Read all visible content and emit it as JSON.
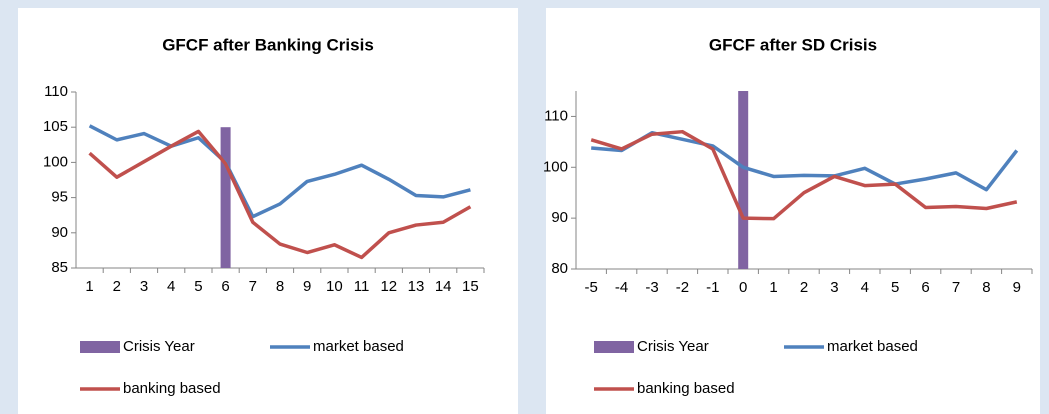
{
  "chart_data": [
    {
      "type": "line",
      "title": "GFCF after Banking Crisis",
      "categories": [
        "1",
        "2",
        "3",
        "4",
        "5",
        "6",
        "7",
        "8",
        "9",
        "10",
        "11",
        "12",
        "13",
        "14",
        "15"
      ],
      "ylim": [
        85,
        110
      ],
      "yticks": [
        85,
        90,
        95,
        100,
        105,
        110
      ],
      "series": [
        {
          "name": "Crisis Year",
          "type": "bar",
          "color": "#8064a2",
          "values": [
            null,
            null,
            null,
            null,
            null,
            105,
            null,
            null,
            null,
            null,
            null,
            null,
            null,
            null,
            null
          ]
        },
        {
          "name": "market based",
          "color": "#4f81bd",
          "values": [
            105.2,
            103.2,
            104.1,
            102.3,
            103.5,
            100,
            92.3,
            94.1,
            97.3,
            98.3,
            99.6,
            97.6,
            95.3,
            95.1,
            96.1
          ]
        },
        {
          "name": "banking based",
          "color": "#c0504d",
          "values": [
            101.3,
            97.9,
            100.1,
            102.3,
            104.4,
            99.8,
            91.5,
            88.4,
            87.2,
            88.3,
            86.5,
            90.0,
            91.1,
            91.5,
            93.7
          ]
        }
      ]
    },
    {
      "type": "line",
      "title": "GFCF after SD Crisis",
      "categories": [
        "-5",
        "-4",
        "-3",
        "-2",
        "-1",
        "0",
        "1",
        "2",
        "3",
        "4",
        "5",
        "6",
        "7",
        "8",
        "9"
      ],
      "ylim": [
        80,
        115
      ],
      "yticks": [
        80,
        90,
        100,
        110
      ],
      "series": [
        {
          "name": "Crisis Year",
          "type": "bar",
          "color": "#8064a2",
          "values": [
            null,
            null,
            null,
            null,
            null,
            115,
            null,
            null,
            null,
            null,
            null,
            null,
            null,
            null,
            null
          ]
        },
        {
          "name": "market based",
          "color": "#4f81bd",
          "values": [
            103.8,
            103.3,
            106.8,
            105.5,
            104.2,
            100,
            98.2,
            98.4,
            98.3,
            99.8,
            96.7,
            97.7,
            98.9,
            95.6,
            103.3
          ]
        },
        {
          "name": "banking based",
          "color": "#c0504d",
          "values": [
            105.4,
            103.6,
            106.5,
            107,
            103.6,
            90,
            89.9,
            95,
            98.2,
            96.4,
            96.7,
            92.1,
            92.3,
            91.9,
            93.2
          ]
        }
      ]
    }
  ]
}
